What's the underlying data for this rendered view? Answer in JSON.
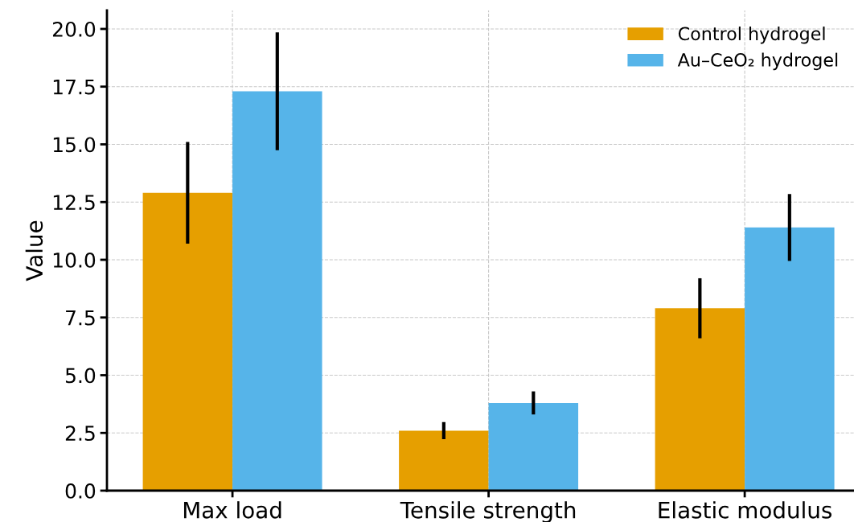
{
  "chart_data": {
    "type": "bar",
    "ylabel": "Value",
    "categories": [
      "Max load",
      "Tensile strength",
      "Elastic modulus"
    ],
    "series": [
      {
        "name": "Control hydrogel",
        "color": "#e69f00",
        "values": [
          12.9,
          2.6,
          7.9
        ],
        "errors": [
          2.2,
          0.37,
          1.3
        ]
      },
      {
        "name": "Au–CeO₂ hydrogel",
        "color": "#56b4e9",
        "values": [
          17.3,
          3.8,
          11.4
        ],
        "errors": [
          2.55,
          0.5,
          1.45
        ]
      }
    ],
    "ylim": [
      0,
      20.8
    ],
    "yticks": [
      {
        "value": 0,
        "label": "0.0"
      },
      2.5,
      {
        "value": 5,
        "label": "5.0"
      },
      7.5,
      {
        "value": 10,
        "label": "10.0"
      },
      12.5,
      {
        "value": 15,
        "label": "15.0"
      },
      17.5,
      {
        "value": 20,
        "label": "20.0"
      }
    ],
    "grid": true,
    "legend": "top right"
  }
}
